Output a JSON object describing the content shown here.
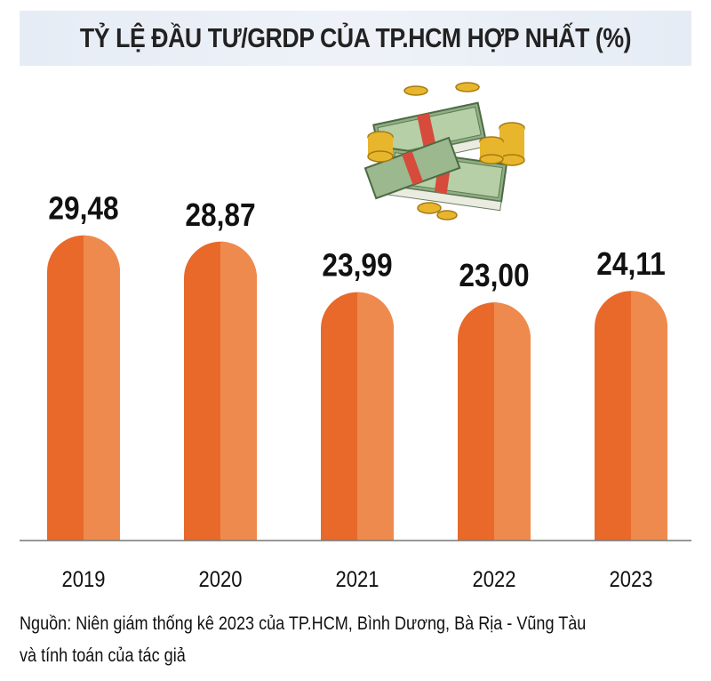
{
  "title": "TỶ LỆ ĐẦU TƯ/GRDP CỦA TP.HCM HỢP NHẤT (%)",
  "chart_data": {
    "type": "bar",
    "categories": [
      "2019",
      "2020",
      "2021",
      "2022",
      "2023"
    ],
    "values": [
      29.48,
      28.87,
      23.99,
      23.0,
      24.11
    ],
    "value_labels": [
      "29,48",
      "28,87",
      "23,99",
      "23,00",
      "24,11"
    ],
    "title": "TỶ LỆ ĐẦU TƯ/GRDP CỦA TP.HCM HỢP NHẤT (%)",
    "xlabel": "",
    "ylabel": "",
    "ylim": [
      0,
      31
    ],
    "grid": false,
    "bar_color": "#e8692a",
    "bar_highlight_color": "#ef8a4e"
  },
  "source": {
    "line1": "Nguồn: Niên giám thống kê 2023 của TP.HCM, Bình Dương, Bà Rịa - Vũng Tàu",
    "line2": "và tính toán của tác giả"
  },
  "illustration": {
    "icon": "money-stack-and-coins-icon"
  }
}
